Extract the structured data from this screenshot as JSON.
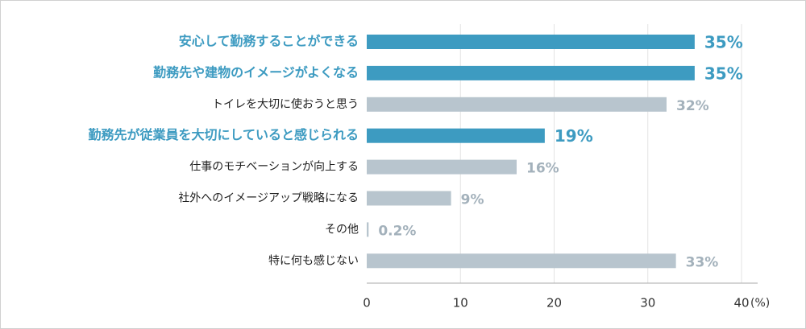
{
  "chart_data": {
    "type": "hbar",
    "categories": [
      "安心して勤務することができる",
      "勤務先や建物のイメージがよくなる",
      "トイレを大切に使おうと思う",
      "勤務先が従業員を大切にしていると感じられる",
      "仕事のモチベーションが向上する",
      "社外へのイメージアップ戦略になる",
      "その他",
      "特に何も感じない"
    ],
    "values": [
      35,
      35,
      32,
      19,
      16,
      9,
      0.2,
      33
    ],
    "value_labels": [
      "35%",
      "35%",
      "32%",
      "19%",
      "16%",
      "9%",
      "0.2%",
      "33%"
    ],
    "colors": [
      "#3d9bc1",
      "#3d9bc1",
      "#b8c5ce",
      "#3d9bc1",
      "#b8c5ce",
      "#b8c5ce",
      "#b8c5ce",
      "#b8c5ce"
    ],
    "emphasis": [
      true,
      true,
      false,
      true,
      false,
      false,
      false,
      false
    ],
    "xlim": [
      0,
      40
    ],
    "xticks": [
      0,
      10,
      20,
      30,
      40
    ],
    "x_unit": "(%)",
    "grid": true
  }
}
